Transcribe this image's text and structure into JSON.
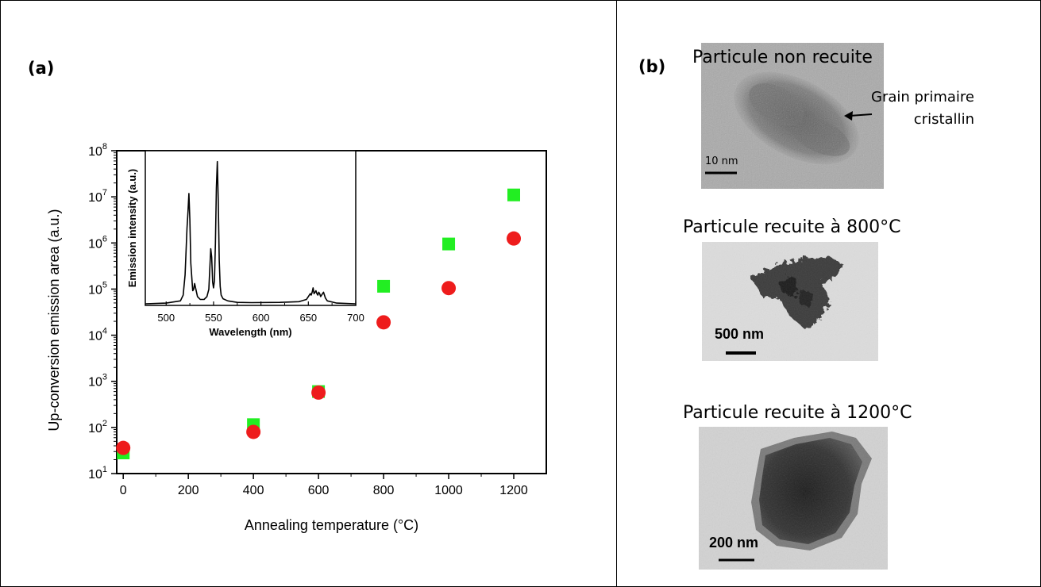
{
  "panel_a": {
    "label": "(a)",
    "chart_data": [
      {
        "type": "scatter",
        "xlabel": "Annealing temperature (°C)",
        "ylabel": "Up-conversion emission area (a.u.)",
        "xlim": [
          -20,
          1300
        ],
        "ylim_log10": [
          1,
          8
        ],
        "yscale": "log",
        "x_ticks": [
          "0",
          "200",
          "400",
          "600",
          "800",
          "1000",
          "1200"
        ],
        "y_ticks": [
          {
            "base": "10",
            "exp": "1"
          },
          {
            "base": "10",
            "exp": "2"
          },
          {
            "base": "10",
            "exp": "3"
          },
          {
            "base": "10",
            "exp": "4"
          },
          {
            "base": "10",
            "exp": "5"
          },
          {
            "base": "10",
            "exp": "6"
          },
          {
            "base": "10",
            "exp": "7"
          },
          {
            "base": "10",
            "exp": "8"
          }
        ],
        "series": [
          {
            "marker": "square",
            "color": "#22ee22",
            "x": [
              0,
              400,
              600,
              800,
              1000,
              1200
            ],
            "y": [
              28,
              115,
              600,
              115000,
              950000,
              11000000
            ]
          },
          {
            "marker": "circle",
            "color": "#ee1c1c",
            "x": [
              0,
              400,
              600,
              800,
              1000,
              1200
            ],
            "y": [
              36,
              80,
              570,
              19000,
              105000,
              1250000
            ]
          }
        ]
      },
      {
        "type": "line",
        "xlabel": "Wavelength (nm)",
        "ylabel": "Emission intensity (a.u.)",
        "xlim": [
          478,
          700
        ],
        "ylim": [
          0,
          1
        ],
        "x_ticks": [
          "500",
          "550",
          "600",
          "650",
          "700"
        ],
        "series": [
          {
            "color": "#000000",
            "x": [
              478,
              500,
              515,
              518,
              520,
              522,
              523,
              524,
              525,
              526,
              528,
              529,
              530,
              531,
              533,
              536,
              540,
              543,
              545,
              546,
              547,
              548,
              549,
              550,
              551,
              552,
              553,
              554,
              555,
              556,
              557,
              558,
              560,
              565,
              575,
              590,
              620,
              640,
              648,
              650,
              652,
              653,
              654,
              655,
              656,
              657,
              658,
              659,
              660,
              661,
              662,
              663,
              664,
              665,
              666,
              667,
              668,
              670,
              680,
              700
            ],
            "y": [
              0.0,
              0.005,
              0.02,
              0.06,
              0.2,
              0.52,
              0.63,
              0.76,
              0.58,
              0.28,
              0.09,
              0.1,
              0.14,
              0.11,
              0.05,
              0.03,
              0.03,
              0.05,
              0.1,
              0.24,
              0.38,
              0.32,
              0.15,
              0.11,
              0.16,
              0.42,
              0.8,
              0.98,
              0.7,
              0.3,
              0.12,
              0.06,
              0.035,
              0.02,
              0.01,
              0.008,
              0.01,
              0.015,
              0.03,
              0.05,
              0.07,
              0.06,
              0.08,
              0.11,
              0.07,
              0.08,
              0.09,
              0.07,
              0.06,
              0.08,
              0.07,
              0.05,
              0.06,
              0.07,
              0.08,
              0.06,
              0.04,
              0.02,
              0.005,
              0.0
            ]
          }
        ]
      }
    ]
  },
  "panel_b": {
    "label": "(b)",
    "images": [
      {
        "caption": "Particule non recuite",
        "scale_bar": "10 nm",
        "annotation": "Grain primaire\ncristallin"
      },
      {
        "caption": "Particule recuite à 800°C",
        "scale_bar": "500 nm"
      },
      {
        "caption": "Particule recuite à 1200°C",
        "scale_bar": "200 nm"
      }
    ]
  }
}
